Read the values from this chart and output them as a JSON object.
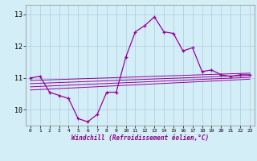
{
  "title": "",
  "xlabel": "Windchill (Refroidissement éolien,°C)",
  "bg_color": "#d4eef8",
  "line_color": "#990099",
  "grid_color": "#aaccdd",
  "xlim": [
    -0.5,
    23.5
  ],
  "ylim": [
    9.5,
    13.3
  ],
  "yticks": [
    10,
    11,
    12,
    13
  ],
  "xticks": [
    0,
    1,
    2,
    3,
    4,
    5,
    6,
    7,
    8,
    9,
    10,
    11,
    12,
    13,
    14,
    15,
    16,
    17,
    18,
    19,
    20,
    21,
    22,
    23
  ],
  "main_x": [
    0,
    1,
    2,
    3,
    4,
    5,
    6,
    7,
    8,
    9,
    10,
    11,
    12,
    13,
    14,
    15,
    16,
    17,
    18,
    19,
    20,
    21,
    22,
    23
  ],
  "main_y": [
    11.0,
    11.05,
    10.55,
    10.45,
    10.35,
    9.72,
    9.62,
    9.85,
    10.55,
    10.55,
    11.65,
    12.45,
    12.65,
    12.92,
    12.45,
    12.4,
    11.85,
    11.95,
    11.2,
    11.25,
    11.1,
    11.05,
    11.1,
    11.1
  ],
  "lines": [
    {
      "x": [
        0,
        23
      ],
      "y": [
        10.92,
        11.15
      ]
    },
    {
      "x": [
        0,
        23
      ],
      "y": [
        10.82,
        11.08
      ]
    },
    {
      "x": [
        0,
        23
      ],
      "y": [
        10.72,
        11.02
      ]
    },
    {
      "x": [
        0,
        23
      ],
      "y": [
        10.62,
        10.96
      ]
    }
  ]
}
